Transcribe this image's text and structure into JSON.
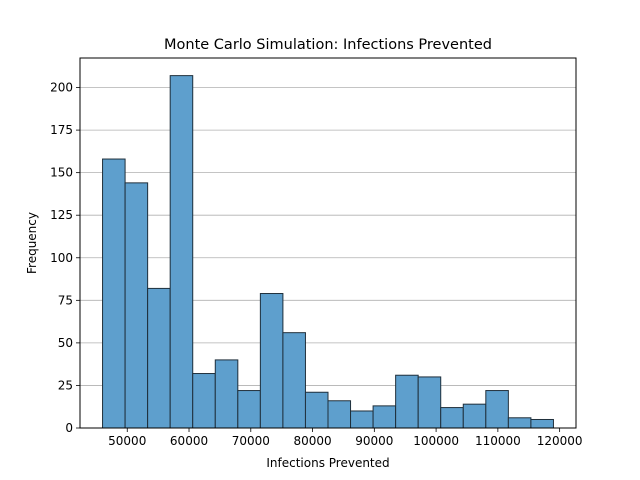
{
  "chart_data": {
    "type": "bar",
    "subtype": "histogram",
    "title": "Monte Carlo Simulation: Infections Prevented",
    "xlabel": "Infections Prevented",
    "ylabel": "Frequency",
    "bin_edges": [
      46000,
      49650,
      53300,
      56950,
      60600,
      64250,
      67900,
      71550,
      75200,
      78850,
      82500,
      86150,
      89800,
      93450,
      97100,
      100750,
      104400,
      108050,
      111700,
      115350,
      119000
    ],
    "values": [
      158,
      144,
      82,
      207,
      32,
      40,
      22,
      79,
      56,
      21,
      16,
      10,
      13,
      31,
      30,
      12,
      14,
      22,
      6,
      5
    ],
    "xlim": [
      42350,
      122650
    ],
    "ylim": [
      0,
      217.35
    ],
    "xticks": [
      50000,
      60000,
      70000,
      80000,
      90000,
      100000,
      110000,
      120000
    ],
    "yticks": [
      0,
      25,
      50,
      75,
      100,
      125,
      150,
      175,
      200
    ],
    "grid": "y",
    "legend": "none",
    "bar_color": "#5e9fcd",
    "bar_edge_color": "#1f2f3b"
  }
}
